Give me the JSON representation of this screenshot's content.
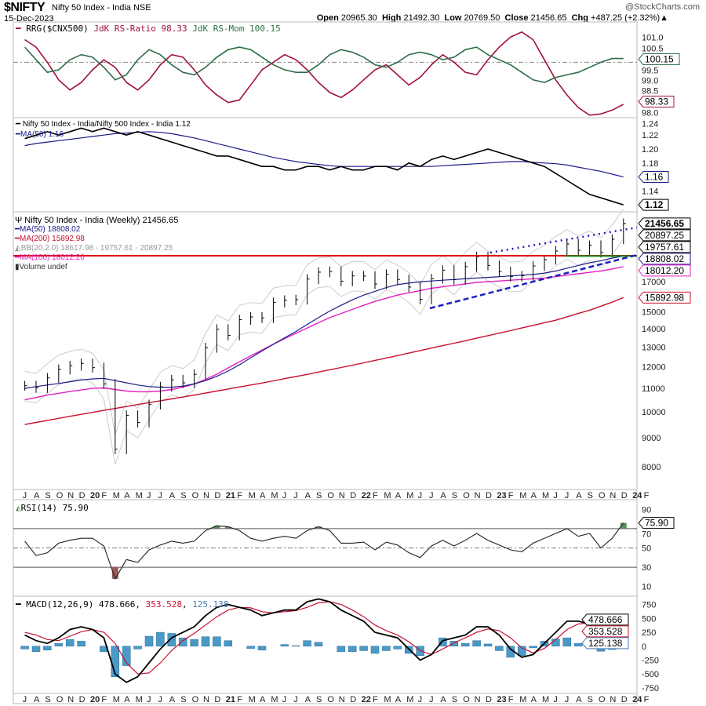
{
  "header": {
    "symbol": "$NIFTY",
    "name": "Nifty 50 Index - India NSE",
    "date": "15-Dec-2023",
    "brand": "@StockCharts.com",
    "open_label": "Open",
    "open": "20965.30",
    "high_label": "High",
    "high": "21492.30",
    "low_label": "Low",
    "low": "20769.50",
    "close_label": "Close",
    "close": "21456.65",
    "chg_label": "Chg",
    "chg": "+487.25 (+2.32%)▲"
  },
  "colors": {
    "ratio": "#a0103c",
    "momentum": "#2e6e45",
    "price": "#000000",
    "ma50": "#1a1a8c",
    "ma200": "#c8102e",
    "ma100": "#e020c0",
    "support": "#e00000",
    "green_line": "#1a8a1a",
    "trend": "#2020c0",
    "hist": "#4a9ac8",
    "rsi_ob": "#5a8a5a",
    "rsi_os": "#9a5a5a"
  },
  "chart_data": [
    {
      "type": "line",
      "title": "RRG($CNX500) JdK RS-Ratio 98.33 JdK RS-Mom 100.15",
      "legend": {
        "prefix": "RRG($CNX500)",
        "s1": "JdK RS-Ratio 98.33",
        "s2": "JdK RS-Mom 100.15"
      },
      "ylim": [
        97.8,
        101.6
      ],
      "y_ticks": [
        "101.0",
        "100.5",
        "99.5",
        "99.0",
        "98.5",
        "98.0"
      ],
      "reference": 100,
      "series": [
        {
          "name": "JdK RS-Ratio",
          "last": "98.33",
          "values": [
            100.9,
            100.6,
            100.0,
            99.3,
            98.9,
            99.2,
            99.7,
            100.1,
            99.8,
            99.2,
            98.9,
            99.3,
            99.9,
            100.3,
            100.2,
            99.7,
            99.1,
            98.7,
            98.4,
            98.5,
            99.1,
            99.7,
            100.0,
            100.3,
            100.1,
            99.7,
            99.2,
            98.8,
            98.6,
            98.9,
            99.3,
            99.7,
            99.9,
            99.5,
            99.1,
            99.4,
            99.9,
            100.3,
            100.0,
            99.6,
            99.5,
            100.1,
            100.6,
            101.0,
            101.2,
            100.9,
            100.1,
            99.3,
            98.7,
            98.2,
            97.9,
            97.95,
            98.1,
            98.33
          ]
        },
        {
          "name": "JdK RS-Mom",
          "last": "100.15",
          "values": [
            100.6,
            100.1,
            99.6,
            99.7,
            100.1,
            100.3,
            100.2,
            99.8,
            99.3,
            99.5,
            100.1,
            100.5,
            100.3,
            99.9,
            99.6,
            99.5,
            99.8,
            100.2,
            100.5,
            100.6,
            100.5,
            100.2,
            99.9,
            99.7,
            99.6,
            99.6,
            99.9,
            100.3,
            100.5,
            100.4,
            100.2,
            99.9,
            99.8,
            100.0,
            100.3,
            100.4,
            100.3,
            100.1,
            100.2,
            100.5,
            100.6,
            100.3,
            100.1,
            99.9,
            99.6,
            99.3,
            99.2,
            99.4,
            99.5,
            99.6,
            99.8,
            100.0,
            100.15,
            100.15
          ]
        }
      ]
    },
    {
      "type": "line",
      "legend": {
        "s1": "Nifty 50 Index - India/Nifty 500 Index - India 1.12",
        "s2": "MA(50) 1.16"
      },
      "ylim": [
        1.11,
        1.245
      ],
      "y_ticks": [
        "1.24",
        "1.22",
        "1.20",
        "1.18",
        "1.14"
      ],
      "series": [
        {
          "name": "Nifty 50 Index - India/Nifty 500 Index - India",
          "last": "1.12",
          "values": [
            1.215,
            1.22,
            1.225,
            1.22,
            1.225,
            1.23,
            1.225,
            1.23,
            1.225,
            1.22,
            1.225,
            1.22,
            1.215,
            1.21,
            1.205,
            1.2,
            1.195,
            1.19,
            1.19,
            1.185,
            1.18,
            1.175,
            1.175,
            1.17,
            1.17,
            1.175,
            1.175,
            1.17,
            1.175,
            1.17,
            1.17,
            1.175,
            1.175,
            1.17,
            1.18,
            1.175,
            1.185,
            1.19,
            1.185,
            1.19,
            1.195,
            1.2,
            1.195,
            1.19,
            1.185,
            1.18,
            1.175,
            1.165,
            1.155,
            1.145,
            1.135,
            1.13,
            1.125,
            1.12
          ]
        },
        {
          "name": "MA(50)",
          "last": "1.16",
          "values": [
            1.205,
            1.208,
            1.21,
            1.212,
            1.214,
            1.216,
            1.218,
            1.22,
            1.222,
            1.223,
            1.224,
            1.225,
            1.224,
            1.222,
            1.219,
            1.216,
            1.212,
            1.208,
            1.204,
            1.2,
            1.196,
            1.192,
            1.188,
            1.185,
            1.182,
            1.18,
            1.178,
            1.176,
            1.175,
            1.175,
            1.175,
            1.175,
            1.175,
            1.175,
            1.175,
            1.175,
            1.175,
            1.176,
            1.177,
            1.178,
            1.179,
            1.18,
            1.181,
            1.182,
            1.182,
            1.181,
            1.18,
            1.179,
            1.177,
            1.174,
            1.171,
            1.168,
            1.164,
            1.16
          ]
        }
      ]
    },
    {
      "type": "line",
      "scale": "log",
      "legend": {
        "title": "Nifty 50 Index - India (Weekly) 21456.65",
        "ma50": "MA(50) 18808.02",
        "ma200": "MA(200) 15892.98",
        "bb": "BB(20,2.0) 18617.98 - 19757.61 - 20897.25",
        "ma100": "MA(100) 18012.20",
        "volume": "Volume undef"
      },
      "ylim": [
        7300,
        22500
      ],
      "y_ticks": [
        "8000",
        "9000",
        "10000",
        "11000",
        "12000",
        "13000",
        "14000",
        "15000",
        "17000"
      ],
      "badges": [
        {
          "text": "21456.65",
          "bold": true,
          "value": 21456.65
        },
        {
          "text": "20897.25",
          "value": 20897.25
        },
        {
          "text": "19757.61",
          "value": 19757.61
        },
        {
          "text": "18808.02",
          "value": 18808.02
        },
        {
          "text": "18012.20",
          "value": 18012.2
        },
        {
          "text": "15892.98",
          "value": 15892.98
        }
      ],
      "series": [
        {
          "name": "Close",
          "values": [
            11118,
            11023,
            11474,
            11877,
            12056,
            12168,
            11962,
            11201,
            8598,
            9860,
            9580,
            10302,
            11073,
            11388,
            11248,
            11642,
            12969,
            13982,
            13635,
            14529,
            14691,
            14631,
            15583,
            15722,
            15763,
            17132,
            17618,
            17672,
            16983,
            17354,
            17340,
            16794,
            17465,
            17103,
            16585,
            15780,
            17158,
            17759,
            17094,
            18012,
            18758,
            18105,
            17662,
            17304,
            17360,
            18065,
            18534,
            19189,
            19754,
            19254,
            19638,
            19079,
            20133,
            21456.65
          ]
        },
        {
          "name": "MA(50)",
          "values": [
            11000,
            11080,
            11150,
            11220,
            11300,
            11380,
            11430,
            11450,
            11350,
            11250,
            11150,
            11080,
            11050,
            11050,
            11100,
            11200,
            11350,
            11550,
            11800,
            12100,
            12450,
            12800,
            13150,
            13500,
            13850,
            14250,
            14650,
            15050,
            15400,
            15750,
            16050,
            16300,
            16550,
            16750,
            16850,
            16950,
            17000,
            17050,
            17100,
            17150,
            17200,
            17250,
            17300,
            17350,
            17400,
            17450,
            17550,
            17700,
            17900,
            18100,
            18300,
            18450,
            18650,
            18808.02
          ]
        },
        {
          "name": "MA(200)",
          "values": [
            9500,
            9580,
            9660,
            9740,
            9820,
            9900,
            9980,
            10060,
            10140,
            10220,
            10300,
            10380,
            10460,
            10540,
            10620,
            10700,
            10790,
            10880,
            10970,
            11060,
            11150,
            11240,
            11340,
            11440,
            11540,
            11640,
            11750,
            11860,
            11970,
            12080,
            12200,
            12320,
            12440,
            12560,
            12690,
            12820,
            12950,
            13080,
            13210,
            13340,
            13480,
            13620,
            13760,
            13900,
            14050,
            14200,
            14350,
            14500,
            14700,
            14900,
            15100,
            15350,
            15600,
            15892.98
          ]
        },
        {
          "name": "MA(100)",
          "values": [
            10500,
            10600,
            10700,
            10780,
            10860,
            10930,
            11000,
            11020,
            10950,
            10880,
            10850,
            10850,
            10880,
            10950,
            11050,
            11200,
            11400,
            11650,
            11950,
            12250,
            12550,
            12850,
            13150,
            13450,
            13750,
            14050,
            14350,
            14650,
            14900,
            15150,
            15400,
            15650,
            15850,
            16050,
            16200,
            16350,
            16500,
            16600,
            16700,
            16800,
            16900,
            16950,
            17000,
            17050,
            17100,
            17150,
            17200,
            17300,
            17400,
            17500,
            17600,
            17700,
            17850,
            18012.2
          ]
        }
      ]
    },
    {
      "type": "line",
      "legend": "RSI(14) 75.90",
      "ylim": [
        0,
        100
      ],
      "y_ticks": [
        "90",
        "70",
        "50",
        "30",
        "10"
      ],
      "last": "75.90",
      "values": [
        57,
        42,
        45,
        55,
        58,
        60,
        60,
        52,
        18,
        38,
        35,
        48,
        53,
        57,
        55,
        57,
        68,
        73,
        72,
        68,
        60,
        57,
        60,
        62,
        60,
        68,
        72,
        68,
        55,
        55,
        56,
        48,
        56,
        53,
        45,
        40,
        52,
        58,
        52,
        58,
        65,
        58,
        53,
        48,
        46,
        55,
        60,
        65,
        70,
        62,
        65,
        50,
        60,
        75.9
      ]
    },
    {
      "type": "line",
      "legend": {
        "prefix": "MACD(12,26,9)",
        "macd": "478.666",
        "signal": "353.528",
        "hist": "125.138"
      },
      "ylim": [
        -850,
        900
      ],
      "y_ticks": [
        "750",
        "500",
        "250",
        "0",
        "-250",
        "-500",
        "-750"
      ],
      "series": [
        {
          "name": "MACD",
          "values": [
            200,
            100,
            50,
            150,
            300,
            350,
            300,
            150,
            -500,
            -650,
            -550,
            -300,
            -50,
            150,
            250,
            350,
            550,
            700,
            750,
            700,
            650,
            550,
            600,
            650,
            650,
            800,
            850,
            800,
            650,
            550,
            450,
            250,
            200,
            150,
            -50,
            -250,
            -150,
            100,
            150,
            200,
            350,
            350,
            200,
            -50,
            -200,
            -150,
            50,
            250,
            450,
            450,
            400,
            250,
            200,
            478.666
          ]
        },
        {
          "name": "Signal",
          "values": [
            250,
            200,
            120,
            100,
            180,
            260,
            300,
            250,
            50,
            -300,
            -500,
            -480,
            -300,
            -80,
            100,
            230,
            380,
            530,
            650,
            700,
            690,
            620,
            600,
            620,
            640,
            700,
            780,
            800,
            750,
            650,
            530,
            380,
            280,
            200,
            80,
            -80,
            -150,
            -50,
            60,
            150,
            250,
            310,
            280,
            150,
            -30,
            -120,
            -40,
            120,
            300,
            400,
            420,
            340,
            260,
            353.528
          ]
        }
      ]
    }
  ],
  "x_ticks": [
    "J",
    "A",
    "S",
    "O",
    "N",
    "D",
    "20",
    "F",
    "M",
    "A",
    "M",
    "J",
    "J",
    "A",
    "S",
    "O",
    "N",
    "D",
    "21",
    "F",
    "M",
    "A",
    "M",
    "J",
    "J",
    "A",
    "S",
    "O",
    "N",
    "D",
    "22",
    "F",
    "M",
    "A",
    "M",
    "J",
    "J",
    "A",
    "S",
    "O",
    "N",
    "D",
    "23",
    "F",
    "M",
    "A",
    "M",
    "J",
    "J",
    "A",
    "S",
    "O",
    "N",
    "D",
    "24",
    "F"
  ]
}
